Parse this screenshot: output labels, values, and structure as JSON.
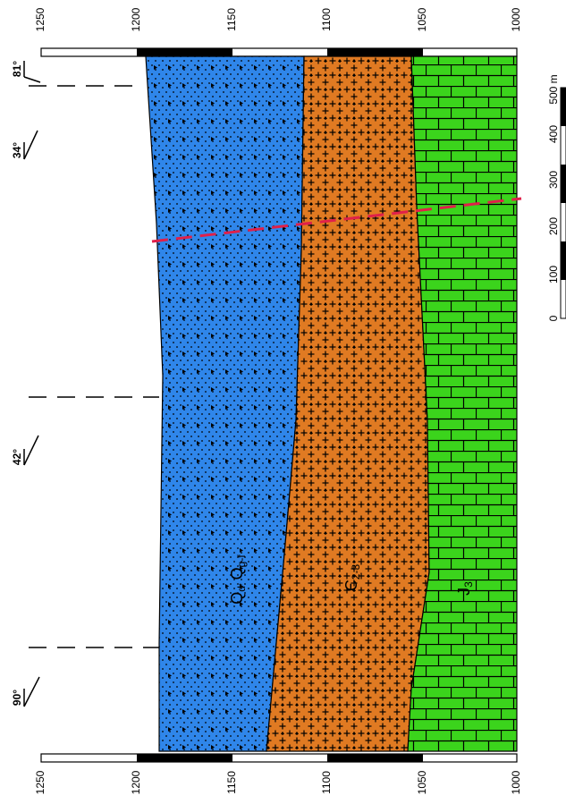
{
  "elevation_axis": {
    "ticks": [
      "1250",
      "1200",
      "1150",
      "1100",
      "1050",
      "1000"
    ]
  },
  "dip_markers": [
    {
      "label": "81°",
      "value": 81
    },
    {
      "label": "34°",
      "value": 34
    },
    {
      "label": "42°",
      "value": 42
    },
    {
      "label": "90°",
      "value": 90
    }
  ],
  "units": [
    {
      "id": "quaternary",
      "label": "Q",
      "sub": "d",
      "label2": "Q",
      "sub2": "g-f",
      "color": "#2f86ea",
      "pattern": "dots-and-triangles"
    },
    {
      "id": "cambrian",
      "label": "Є",
      "sub": "2-3",
      "color": "#e07a22",
      "pattern": "crosses"
    },
    {
      "id": "jurassic",
      "label": "J",
      "sub": "3",
      "color": "#3bd41c",
      "pattern": "brick"
    }
  ],
  "fault_color": "#e0204a",
  "scale_bar": {
    "ticks": [
      "0",
      "100",
      "200",
      "300",
      "400",
      "500 m"
    ]
  }
}
